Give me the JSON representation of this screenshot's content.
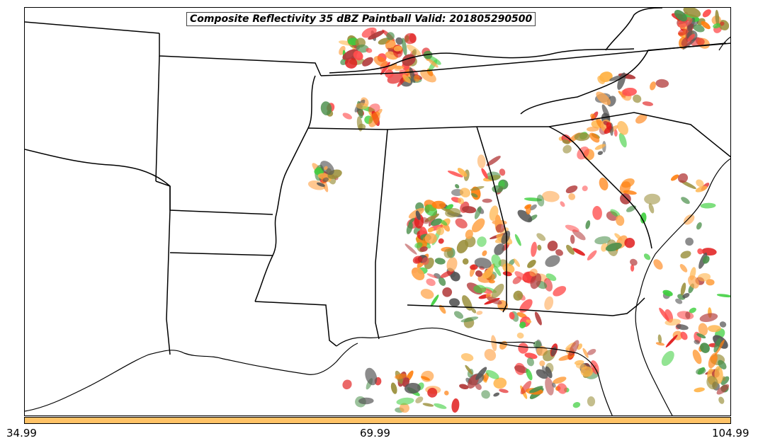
{
  "title": "Composite Reflectivity 35 dBZ Paintball Valid: 201805290500",
  "colorbar": {
    "color": "#ffc266",
    "ticks": [
      "34.99",
      "69.99",
      "104.99"
    ]
  },
  "paint_colors": [
    "#ff4d4d",
    "#b33c3c",
    "#ff7f0e",
    "#ffb347",
    "#3ecf3e",
    "#4a8f4a",
    "#9a8f3a",
    "#555555",
    "#e01a1a",
    "#ffa64d"
  ]
}
